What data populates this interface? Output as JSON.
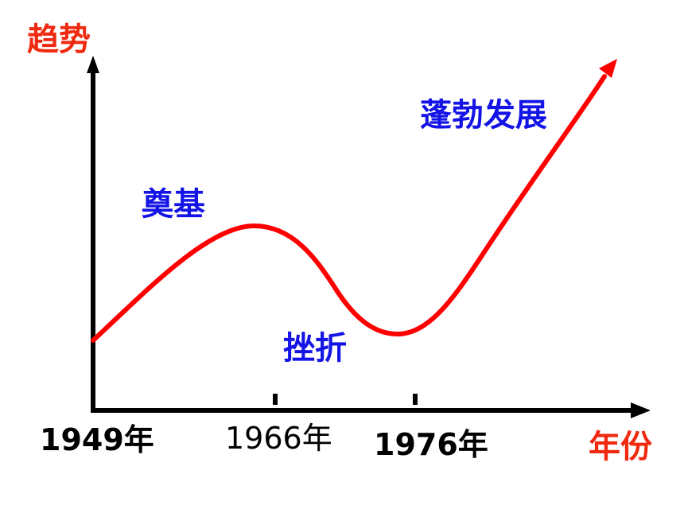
{
  "diagram": {
    "y_axis_label": "趋势",
    "x_axis_label": "年份",
    "x_ticks": [
      {
        "label": "1949年",
        "year": 1949
      },
      {
        "label": "1966年",
        "year": 1966
      },
      {
        "label": "1976年",
        "year": 1976
      }
    ],
    "phases": [
      {
        "label": "奠基"
      },
      {
        "label": "挫折"
      },
      {
        "label": "蓬勃发展"
      }
    ],
    "colors": {
      "axis": "#000000",
      "curve": "#ff0000",
      "axis_labels": "#f02a10",
      "phase_labels": "#1414e6",
      "year_labels": "#000000"
    }
  }
}
